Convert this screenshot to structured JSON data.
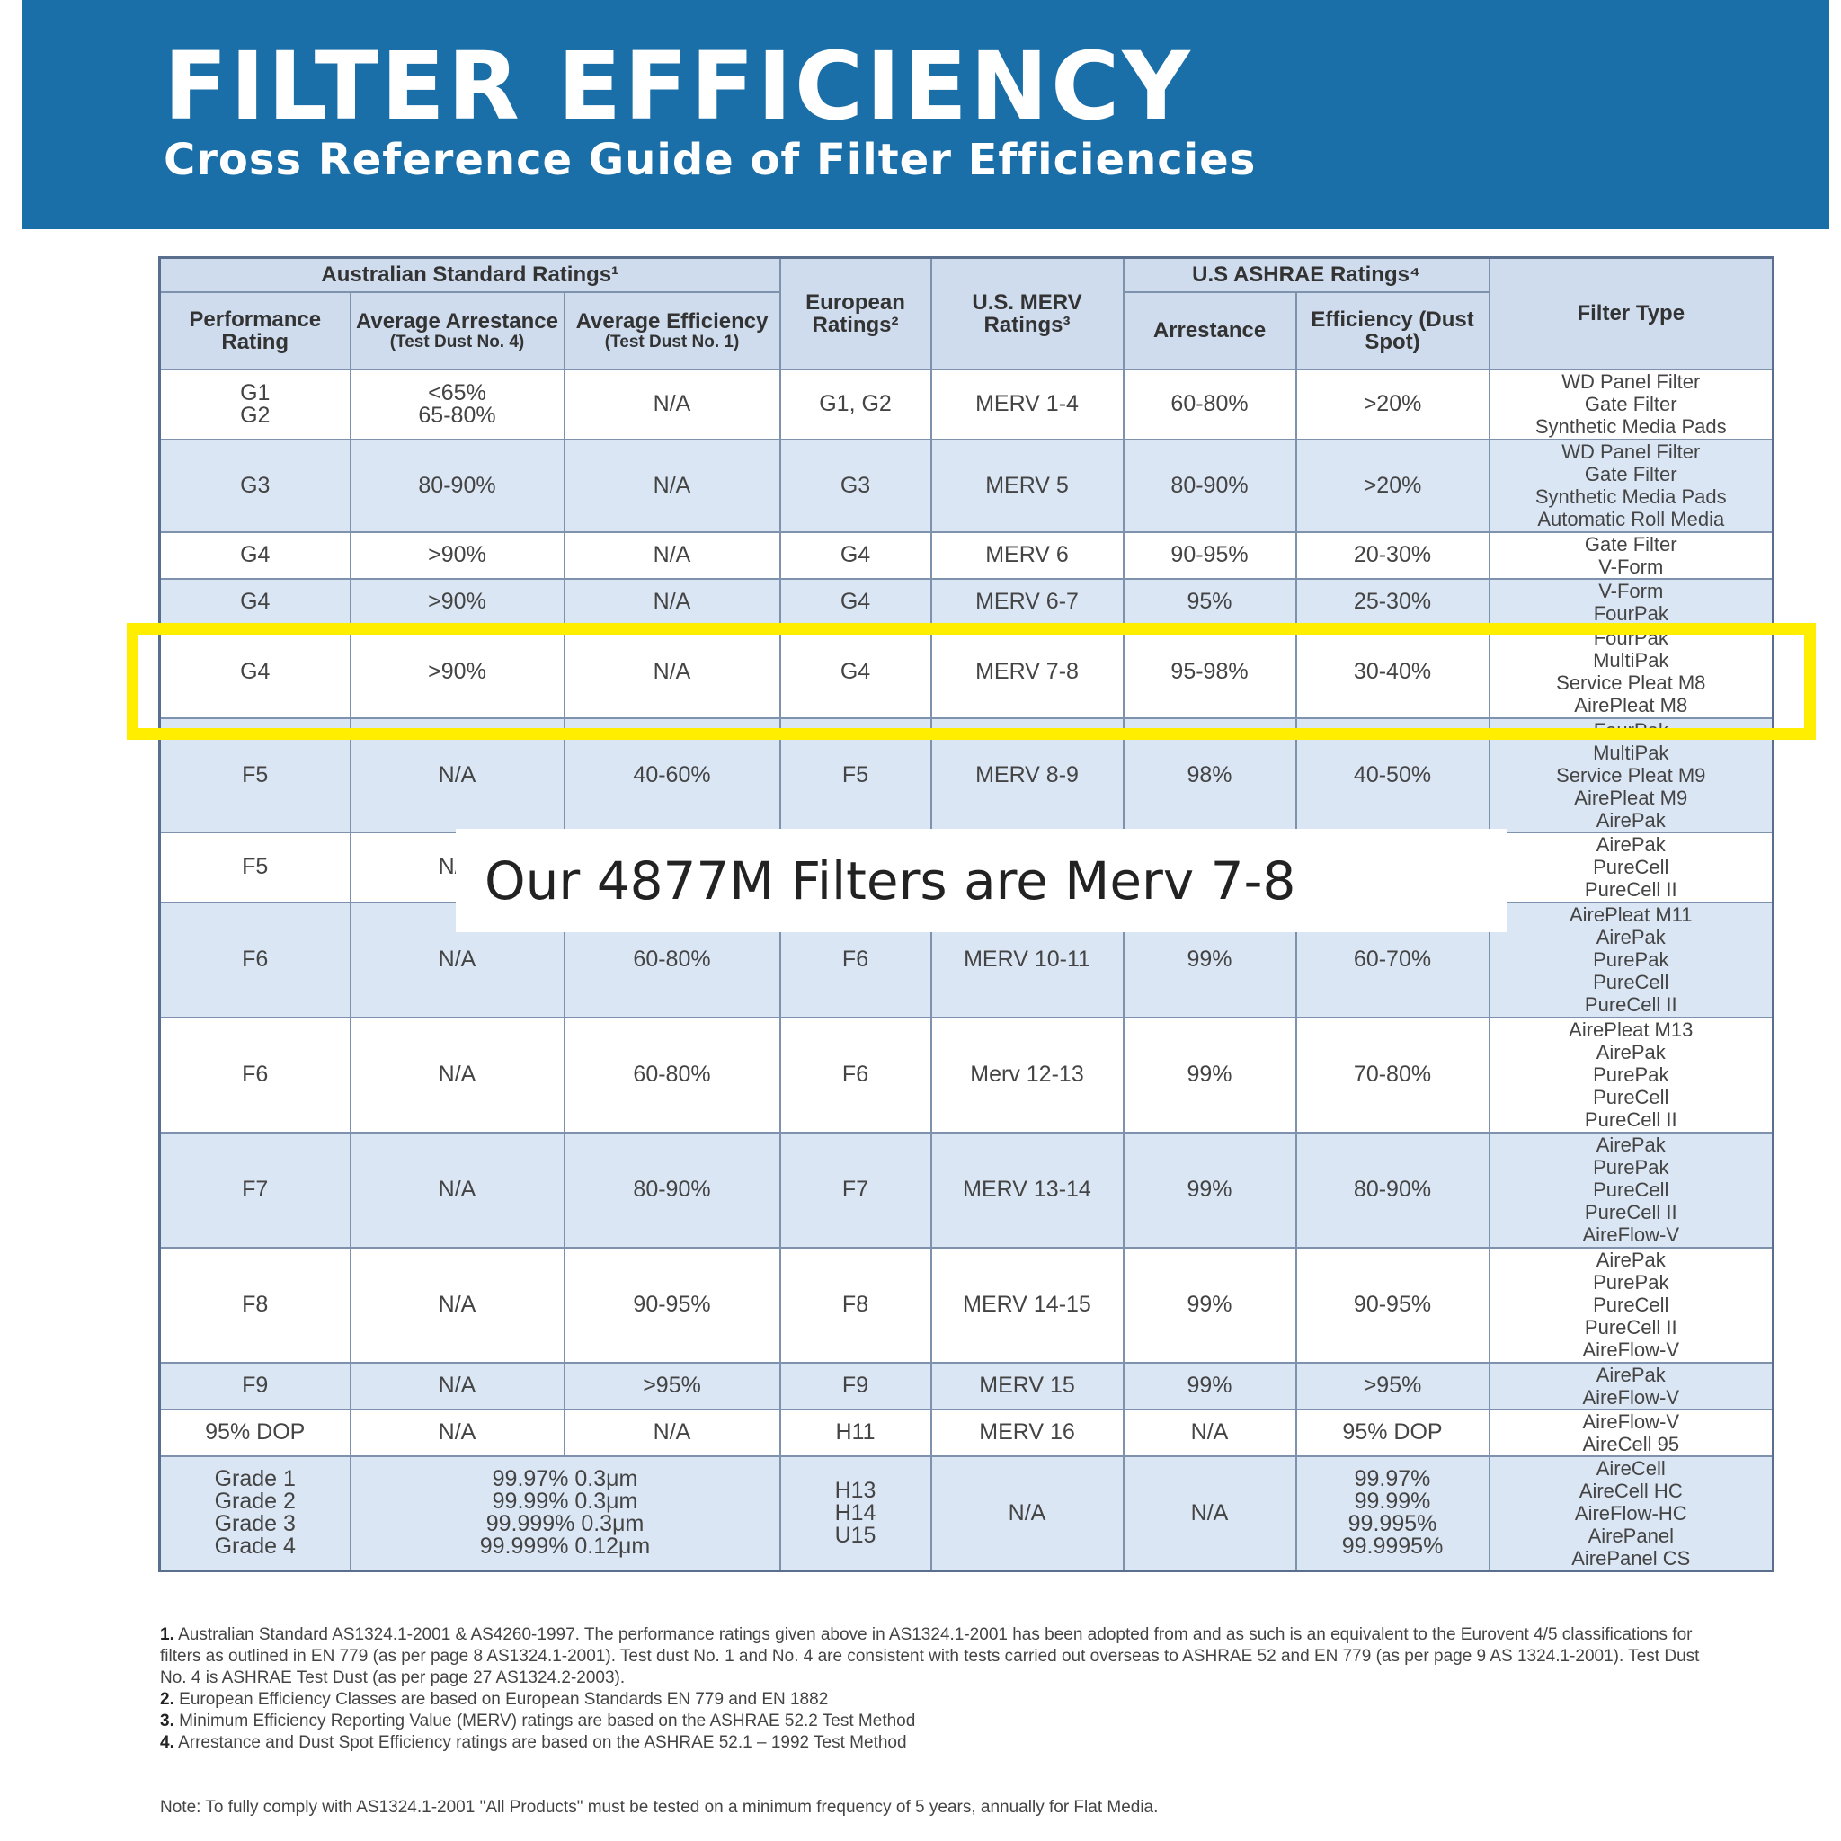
{
  "banner": {
    "title": "FILTER EFFICIENCY",
    "subtitle": "Cross Reference Guide of Filter Efficiencies"
  },
  "table": {
    "group_headers": {
      "australian": "Australian Standard Ratings¹",
      "ashrae": "U.S ASHRAE Ratings⁴"
    },
    "headers": {
      "performance": "Performance Rating",
      "avg_arrestance": "Average Arrestance",
      "avg_arrestance_sub": "(Test Dust No. 4)",
      "avg_efficiency": "Average Efficiency",
      "avg_efficiency_sub": "(Test Dust No. 1)",
      "european": "European Ratings²",
      "merv": "U.S. MERV Ratings³",
      "arrestance": "Arrestance",
      "efficiency": "Efficiency (Dust Spot)",
      "filter_type": "Filter Type"
    },
    "rows": [
      {
        "perf": [
          "G1",
          "G2"
        ],
        "arr": [
          "<65%",
          "65-80%"
        ],
        "eff": "N/A",
        "eu": "G1, G2",
        "merv": "MERV 1-4",
        "ash_arr": "60-80%",
        "ash_eff": ">20%",
        "types": [
          "WD Panel Filter",
          "Gate Filter",
          "Synthetic Media Pads"
        ]
      },
      {
        "perf": [
          "G3"
        ],
        "arr": [
          "80-90%"
        ],
        "eff": "N/A",
        "eu": "G3",
        "merv": "MERV 5",
        "ash_arr": "80-90%",
        "ash_eff": ">20%",
        "types": [
          "WD Panel Filter",
          "Gate Filter",
          "Synthetic Media Pads",
          "Automatic Roll Media"
        ]
      },
      {
        "perf": [
          "G4"
        ],
        "arr": [
          ">90%"
        ],
        "eff": "N/A",
        "eu": "G4",
        "merv": "MERV 6",
        "ash_arr": "90-95%",
        "ash_eff": "20-30%",
        "types": [
          "Gate Filter",
          "V-Form"
        ]
      },
      {
        "perf": [
          "G4"
        ],
        "arr": [
          ">90%"
        ],
        "eff": "N/A",
        "eu": "G4",
        "merv": "MERV 6-7",
        "ash_arr": "95%",
        "ash_eff": "25-30%",
        "types": [
          "V-Form",
          "FourPak"
        ]
      },
      {
        "perf": [
          "G4"
        ],
        "arr": [
          ">90%"
        ],
        "eff": "N/A",
        "eu": "G4",
        "merv": "MERV 7-8",
        "ash_arr": "95-98%",
        "ash_eff": "30-40%",
        "types": [
          "FourPak",
          "MultiPak",
          "Service Pleat M8",
          "AirePleat M8"
        ]
      },
      {
        "perf": [
          "F5"
        ],
        "arr": [
          "N/A"
        ],
        "eff": "40-60%",
        "eu": "F5",
        "merv": "MERV 8-9",
        "ash_arr": "98%",
        "ash_eff": "40-50%",
        "types": [
          "FourPak",
          "MultiPak",
          "Service Pleat M9",
          "AirePleat M9",
          "AirePak"
        ]
      },
      {
        "perf": [
          "F5"
        ],
        "arr": [
          "N/A"
        ],
        "eff": "",
        "eu": "",
        "merv": "",
        "ash_arr": "",
        "ash_eff": "",
        "types": [
          "AirePak",
          "PureCell",
          "PureCell II"
        ]
      },
      {
        "perf": [
          "F6"
        ],
        "arr": [
          "N/A"
        ],
        "eff": "60-80%",
        "eu": "F6",
        "merv": "MERV 10-11",
        "ash_arr": "99%",
        "ash_eff": "60-70%",
        "types": [
          "AirePleat M11",
          "AirePak",
          "PurePak",
          "PureCell",
          "PureCell II"
        ]
      },
      {
        "perf": [
          "F6"
        ],
        "arr": [
          "N/A"
        ],
        "eff": "60-80%",
        "eu": "F6",
        "merv": "Merv 12-13",
        "ash_arr": "99%",
        "ash_eff": "70-80%",
        "types": [
          "AirePleat M13",
          "AirePak",
          "PurePak",
          "PureCell",
          "PureCell II"
        ]
      },
      {
        "perf": [
          "F7"
        ],
        "arr": [
          "N/A"
        ],
        "eff": "80-90%",
        "eu": "F7",
        "merv": "MERV 13-14",
        "ash_arr": "99%",
        "ash_eff": "80-90%",
        "types": [
          "AirePak",
          "PurePak",
          "PureCell",
          "PureCell II",
          "AireFlow-V"
        ]
      },
      {
        "perf": [
          "F8"
        ],
        "arr": [
          "N/A"
        ],
        "eff": "90-95%",
        "eu": "F8",
        "merv": "MERV 14-15",
        "ash_arr": "99%",
        "ash_eff": "90-95%",
        "types": [
          "AirePak",
          "PurePak",
          "PureCell",
          "PureCell II",
          "AireFlow-V"
        ]
      },
      {
        "perf": [
          "F9"
        ],
        "arr": [
          "N/A"
        ],
        "eff": ">95%",
        "eu": "F9",
        "merv": "MERV 15",
        "ash_arr": "99%",
        "ash_eff": ">95%",
        "types": [
          "AirePak",
          "AireFlow-V"
        ]
      },
      {
        "perf": [
          "95% DOP"
        ],
        "arr": [
          "N/A"
        ],
        "eff": "N/A",
        "eu": "H11",
        "merv": "MERV 16",
        "ash_arr": "N/A",
        "ash_eff": "95% DOP",
        "types": [
          "AireFlow-V",
          "AireCell 95"
        ]
      }
    ],
    "last_row": {
      "perf": [
        "Grade 1",
        "Grade 2",
        "Grade 3",
        "Grade 4"
      ],
      "combined": [
        "99.97% 0.3μm",
        "99.99% 0.3μm",
        "99.999% 0.3μm",
        "99.999% 0.12μm"
      ],
      "eu": [
        "H13",
        "",
        "H14",
        "U15"
      ],
      "merv": "N/A",
      "ash_arr": "N/A",
      "ash_eff": [
        "99.97%",
        "99.99%",
        "99.995%",
        "99.9995%"
      ],
      "types": [
        "AireCell",
        "AireCell HC",
        "AireFlow-HC",
        "AirePanel",
        "AirePanel CS"
      ]
    }
  },
  "highlight_label": "Our 4877M Filters are Merv 7-8",
  "footnotes": [
    {
      "num": "1.",
      "text": "Australian Standard AS1324.1-2001 & AS4260-1997. The performance ratings given above in AS1324.1-2001 has been adopted from and as such is an equivalent to the Eurovent 4/5 classifications for filters as outlined in EN 779 (as per page 8 AS1324.1-2001). Test dust No. 1 and No. 4 are consistent with tests carried out overseas to ASHRAE 52 and EN 779 (as per page 9 AS 1324.1-2001). Test Dust No. 4 is ASHRAE Test Dust (as per page 27 AS1324.2-2003)."
    },
    {
      "num": "2.",
      "text": "European Efficiency Classes are based on European Standards EN 779 and EN 1882"
    },
    {
      "num": "3.",
      "text": "Minimum Efficiency Reporting Value (MERV) ratings are based on the ASHRAE 52.2 Test Method"
    },
    {
      "num": "4.",
      "text": "Arrestance and Dust Spot Efficiency ratings are based on the ASHRAE 52.1 – 1992 Test Method"
    }
  ],
  "note": "Note: To fully comply with AS1324.1-2001 \"All Products\" must be tested on a minimum frequency of 5 years, annually for Flat Media."
}
